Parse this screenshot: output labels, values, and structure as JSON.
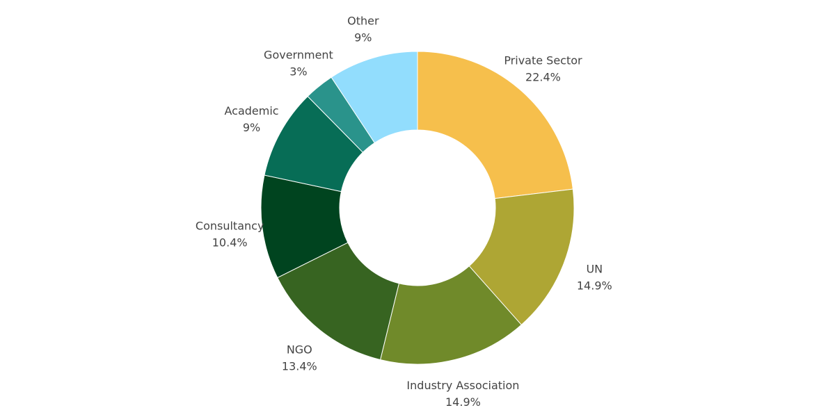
{
  "chart_data": {
    "type": "pie",
    "variant": "donut",
    "title": "",
    "categories": [
      "Private Sector",
      "UN",
      "Industry Association",
      "NGO",
      "Consultancy",
      "Academic",
      "Government",
      "Other"
    ],
    "values": [
      22.4,
      14.9,
      14.9,
      13.4,
      10.4,
      9,
      3,
      9
    ],
    "value_labels": [
      "22.4%",
      "14.9%",
      "14.9%",
      "13.4%",
      "10.4%",
      "9%",
      "3%",
      "9%"
    ],
    "colors": [
      "#F6BF4C",
      "#AEA634",
      "#708A2A",
      "#376421",
      "#00441F",
      "#076D56",
      "#2A938B",
      "#5AB8C7"
    ],
    "slice_colors": {
      "Private Sector": "#F6BF4C",
      "UN": "#AEA634",
      "Industry Association": "#708A2A",
      "NGO": "#376421",
      "Consultancy": "#00441F",
      "Academic": "#076D56",
      "Government": "#2A938B",
      "Other": "#92DDFD"
    },
    "legend": "none",
    "labels_outside": true
  }
}
